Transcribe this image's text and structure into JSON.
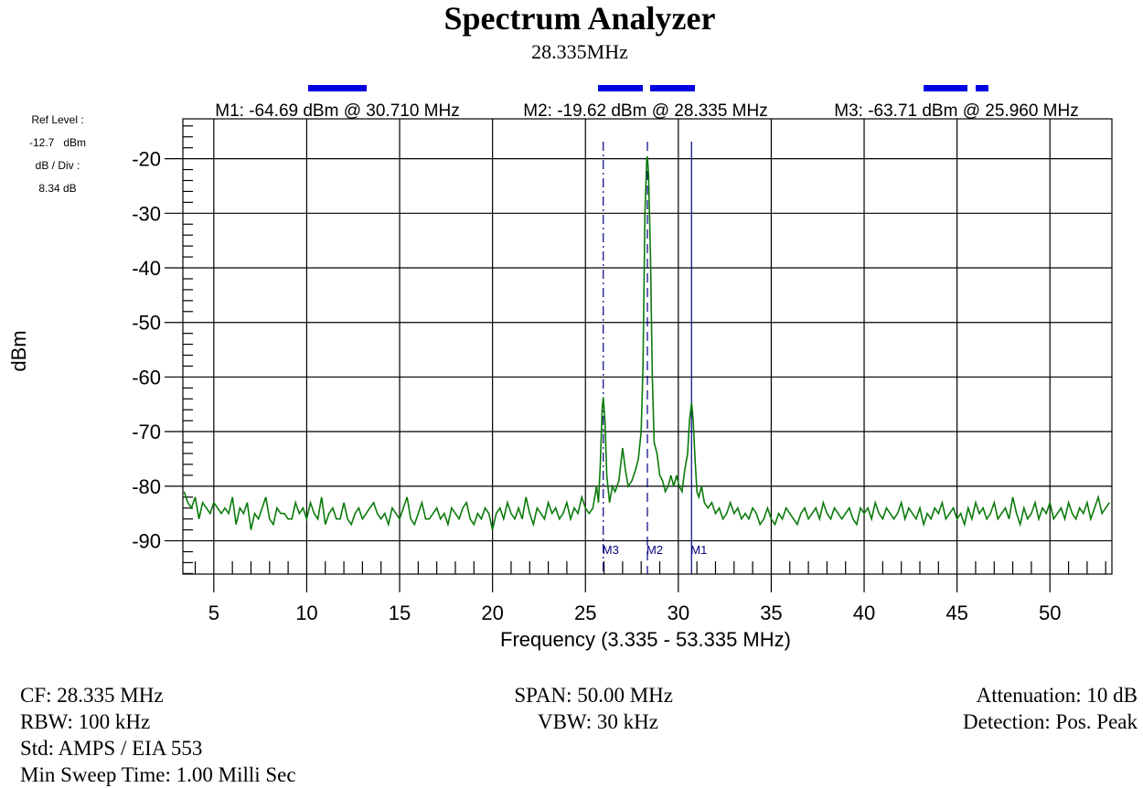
{
  "chart_data": {
    "type": "line",
    "title": "Spectrum Analyzer",
    "subtitle": "28.335MHz",
    "xlabel": "Frequency (3.335 - 53.335 MHz)",
    "ylabel": "dBm",
    "xlim": [
      3.335,
      53.335
    ],
    "ylim": [
      -96.1,
      -12.7
    ],
    "grid": true,
    "x_ticks": [
      5,
      10,
      15,
      20,
      25,
      30,
      35,
      40,
      45,
      50
    ],
    "y_ticks": [
      -20,
      -30,
      -40,
      -50,
      -60,
      -70,
      -80,
      -90
    ],
    "trace_color": "#0a7a0a",
    "marker_color": "#000080",
    "trace": {
      "segment1": {
        "x_start": 3.4,
        "x_step": 0.2,
        "y": [
          -81,
          -83,
          -84,
          -82,
          -86,
          -83,
          -84,
          -85,
          -83,
          -84,
          -85,
          -84,
          -85,
          -82,
          -87,
          -84,
          -85,
          -83,
          -88,
          -85,
          -86,
          -84,
          -82,
          -86,
          -87,
          -84,
          -85,
          -85,
          -86,
          -86,
          -83,
          -85,
          -84,
          -86,
          -83,
          -85,
          -86,
          -82,
          -87,
          -85,
          -84,
          -86,
          -86,
          -83,
          -86,
          -87,
          -85,
          -84,
          -86,
          -85,
          -84,
          -83,
          -85,
          -86,
          -85,
          -87,
          -84,
          -85,
          -86,
          -84,
          -82,
          -86,
          -87,
          -85,
          -83,
          -86,
          -86,
          -85,
          -84,
          -86,
          -85,
          -87,
          -84,
          -85,
          -86,
          -84,
          -83,
          -86,
          -87,
          -85,
          -86,
          -84,
          -85,
          -88,
          -85,
          -84,
          -86,
          -83,
          -85,
          -86,
          -84,
          -86,
          -82,
          -85,
          -87,
          -84,
          -85,
          -86,
          -83,
          -85,
          -84,
          -86,
          -85,
          -83,
          -86,
          -84,
          -85,
          -82,
          -84,
          -85
        ]
      },
      "detail": [
        [
          25.4,
          -84
        ],
        [
          25.5,
          -82
        ],
        [
          25.6,
          -80
        ],
        [
          25.7,
          -83
        ],
        [
          25.8,
          -76
        ],
        [
          25.9,
          -66
        ],
        [
          25.96,
          -63.7
        ],
        [
          26.05,
          -68
        ],
        [
          26.15,
          -78
        ],
        [
          26.3,
          -83
        ],
        [
          26.45,
          -80
        ],
        [
          26.6,
          -81
        ],
        [
          26.8,
          -79
        ],
        [
          27.0,
          -73
        ],
        [
          27.15,
          -77
        ],
        [
          27.3,
          -80
        ],
        [
          27.5,
          -79
        ],
        [
          27.7,
          -77
        ],
        [
          27.85,
          -75
        ],
        [
          28.0,
          -70
        ],
        [
          28.1,
          -58
        ],
        [
          28.2,
          -30
        ],
        [
          28.3,
          -20
        ],
        [
          28.335,
          -19.6
        ],
        [
          28.4,
          -23
        ],
        [
          28.5,
          -38
        ],
        [
          28.6,
          -60
        ],
        [
          28.7,
          -72
        ],
        [
          28.85,
          -74
        ],
        [
          29.0,
          -78
        ],
        [
          29.15,
          -79
        ],
        [
          29.3,
          -81
        ],
        [
          29.45,
          -80
        ],
        [
          29.6,
          -78
        ],
        [
          29.75,
          -80
        ],
        [
          29.9,
          -78
        ],
        [
          30.05,
          -80
        ],
        [
          30.2,
          -81
        ],
        [
          30.35,
          -77
        ],
        [
          30.5,
          -74
        ],
        [
          30.6,
          -68
        ],
        [
          30.71,
          -64.7
        ],
        [
          30.8,
          -68
        ],
        [
          30.9,
          -75
        ],
        [
          31.0,
          -81
        ],
        [
          31.1,
          -82
        ],
        [
          31.25,
          -80
        ],
        [
          31.4,
          -83
        ]
      ],
      "segment2": {
        "x_start": 31.6,
        "x_step": 0.2,
        "y": [
          -84,
          -83,
          -85,
          -84,
          -86,
          -85,
          -83,
          -85,
          -84,
          -86,
          -85,
          -86,
          -84,
          -85,
          -87,
          -86,
          -84,
          -86,
          -87,
          -85,
          -86,
          -84,
          -85,
          -86,
          -87,
          -85,
          -84,
          -86,
          -85,
          -84,
          -86,
          -83,
          -85,
          -86,
          -84,
          -85,
          -86,
          -85,
          -84,
          -86,
          -87,
          -84,
          -85,
          -84,
          -86,
          -83,
          -85,
          -86,
          -84,
          -85,
          -86,
          -85,
          -83,
          -86,
          -84,
          -85,
          -86,
          -84,
          -87,
          -85,
          -86,
          -84,
          -85,
          -83,
          -86,
          -85,
          -84,
          -86,
          -85,
          -87,
          -84,
          -86,
          -83,
          -85,
          -84,
          -86,
          -85,
          -83,
          -86,
          -85,
          -84,
          -86,
          -82,
          -85,
          -87,
          -84,
          -86,
          -85,
          -83,
          -86,
          -84,
          -85,
          -83,
          -86,
          -85,
          -84,
          -86,
          -83,
          -85,
          -86,
          -84,
          -85,
          -83,
          -86,
          -84,
          -82,
          -85,
          -84,
          -83
        ]
      }
    },
    "markers": [
      {
        "id": "M1",
        "label": "M1",
        "readout": "M1: -64.69 dBm @ 30.710 MHz",
        "freq": 30.71,
        "level": -64.69,
        "style": "solid"
      },
      {
        "id": "M2",
        "label": "M2",
        "readout": "M2: -19.62 dBm @ 28.335 MHz",
        "freq": 28.335,
        "level": -19.62,
        "style": "dashed"
      },
      {
        "id": "M3",
        "label": "M3",
        "readout": "M3: -63.71 dBm @ 25.960 MHz",
        "freq": 25.96,
        "level": -63.71,
        "style": "dashdot"
      }
    ]
  },
  "side_panel": {
    "ref_level_label": "Ref Level :",
    "ref_level_value": "-12.7   dBm",
    "db_div_label": "dB / Div :",
    "db_div_value": "8.34 dB"
  },
  "settings": {
    "cf": "CF: 28.335 MHz",
    "rbw": "RBW: 100 kHz",
    "std": "Std: AMPS / EIA 553",
    "sweep": "Min Sweep Time: 1.00 Milli Sec",
    "span": "SPAN: 50.00 MHz",
    "vbw": "VBW: 30 kHz",
    "attenuation": "Attenuation: 10 dB",
    "detection": "Detection: Pos. Peak"
  }
}
